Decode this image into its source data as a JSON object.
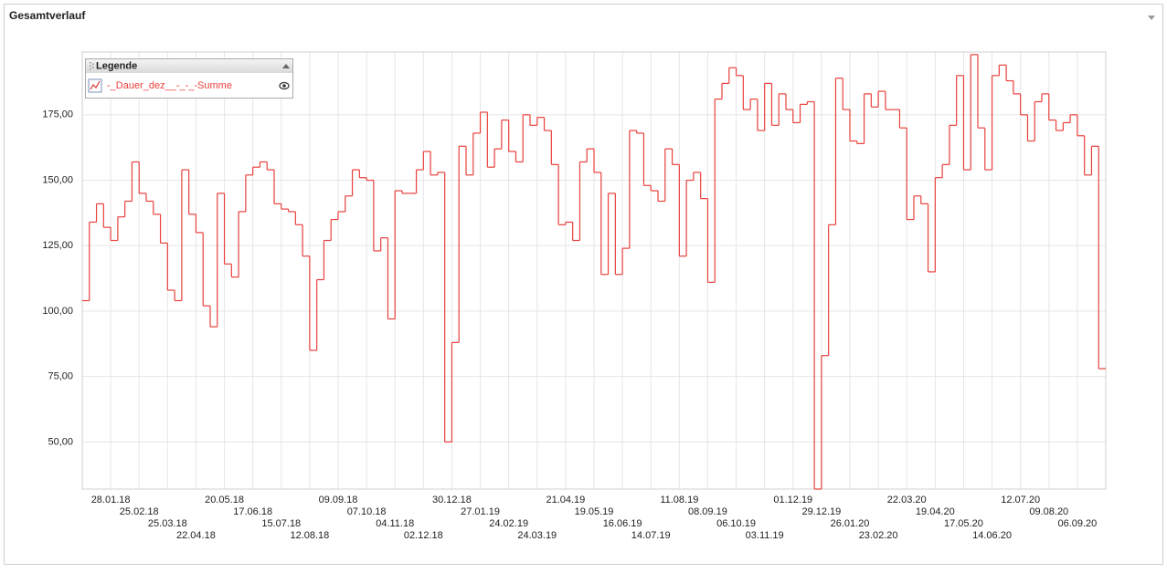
{
  "chart_data": {
    "type": "step",
    "title": "Gesamtverlauf",
    "legend_title": "Legende",
    "legend_position": "top-left",
    "grid": true,
    "categories": [
      null,
      null,
      null,
      null,
      "28.01.18",
      null,
      null,
      null,
      "25.02.18",
      null,
      null,
      null,
      "25.03.18",
      null,
      null,
      null,
      "22.04.18",
      null,
      null,
      null,
      "20.05.18",
      null,
      null,
      null,
      "17.06.18",
      null,
      null,
      null,
      "15.07.18",
      null,
      null,
      null,
      "12.08.18",
      null,
      null,
      null,
      "09.09.18",
      null,
      null,
      null,
      "07.10.18",
      null,
      null,
      null,
      "04.11.18",
      null,
      null,
      null,
      "02.12.18",
      null,
      null,
      null,
      "30.12.18",
      null,
      null,
      null,
      "27.01.19",
      null,
      null,
      null,
      "24.02.19",
      null,
      null,
      null,
      "24.03.19",
      null,
      null,
      null,
      "21.04.19",
      null,
      null,
      null,
      "19.05.19",
      null,
      null,
      null,
      "16.06.19",
      null,
      null,
      null,
      "14.07.19",
      null,
      null,
      null,
      "11.08.19",
      null,
      null,
      null,
      "08.09.19",
      null,
      null,
      null,
      "06.10.19",
      null,
      null,
      null,
      "03.11.19",
      null,
      null,
      null,
      "01.12.19",
      null,
      null,
      null,
      "29.12.19",
      null,
      null,
      null,
      "26.01.20",
      null,
      null,
      null,
      "23.02.20",
      null,
      null,
      null,
      "22.03.20",
      null,
      null,
      null,
      "19.04.20",
      null,
      null,
      null,
      "17.05.20",
      null,
      null,
      null,
      "14.06.20",
      null,
      null,
      null,
      "12.07.20",
      null,
      null,
      null,
      "09.08.20",
      null,
      null,
      null,
      "06.09.20",
      null,
      null,
      null
    ],
    "series": [
      {
        "name": "-_Dauer_dez__-_-_-Summe",
        "color": "#e8413c",
        "values": [
          104,
          134,
          141,
          132,
          127,
          136,
          142,
          157,
          145,
          142,
          137,
          126,
          108,
          104,
          154,
          137,
          130,
          102,
          94,
          145,
          118,
          113,
          138,
          152,
          155,
          157,
          154,
          141,
          139,
          138,
          133,
          121,
          85,
          112,
          127,
          135,
          138,
          144,
          154,
          151,
          150,
          123,
          128,
          97,
          146,
          145,
          145,
          154,
          161,
          152,
          153,
          50,
          88,
          163,
          152,
          168,
          176,
          155,
          162,
          173,
          161,
          157,
          175,
          171,
          174,
          169,
          156,
          133,
          134,
          127,
          157,
          162,
          153,
          114,
          145,
          114,
          124,
          169,
          168,
          148,
          146,
          142,
          162,
          156,
          121,
          150,
          153,
          143,
          111,
          181,
          187,
          193,
          190,
          177,
          181,
          169,
          187,
          171,
          183,
          177,
          172,
          179,
          180,
          32,
          83,
          133,
          189,
          177,
          165,
          164,
          183,
          178,
          184,
          177,
          177,
          170,
          135,
          144,
          141,
          115,
          151,
          156,
          171,
          190,
          154,
          198,
          170,
          154,
          190,
          194,
          188,
          183,
          175,
          165,
          180,
          183,
          173,
          169,
          172,
          175,
          167,
          152,
          163,
          78
        ]
      }
    ],
    "ylim": [
      32,
      199
    ],
    "yticks": [
      {
        "value": 50,
        "label": "50,00"
      },
      {
        "value": 75,
        "label": "75,00"
      },
      {
        "value": 100,
        "label": "100,00"
      },
      {
        "value": 125,
        "label": "125,00"
      },
      {
        "value": 150,
        "label": "150,00"
      },
      {
        "value": 175,
        "label": "175,00"
      }
    ]
  }
}
